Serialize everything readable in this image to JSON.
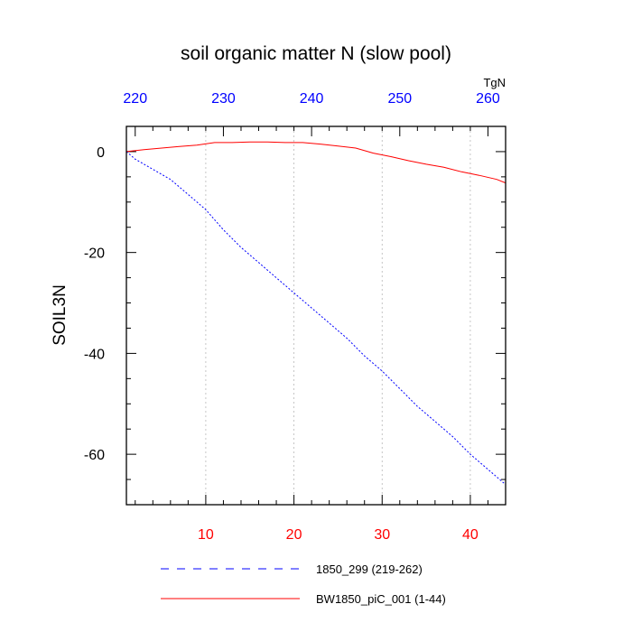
{
  "chart_data": {
    "type": "line",
    "title": "soil organic matter N (slow pool)",
    "ylabel": "SOIL3N",
    "units": "TgN",
    "ylim": [
      -70,
      5
    ],
    "yticks": [
      0,
      -20,
      -40,
      -60
    ],
    "bottom_axis": {
      "range": [
        1,
        44
      ],
      "ticks": [
        10,
        20,
        30,
        40
      ],
      "color": "#ff0000"
    },
    "top_axis": {
      "range": [
        219,
        262
      ],
      "ticks": [
        220,
        230,
        240,
        250,
        260
      ],
      "color": "#0000ff"
    },
    "series": [
      {
        "name": "1850_299 (219-262)",
        "color": "#0000ff",
        "style": "dashed",
        "axis": "top",
        "x": [
          219,
          220,
          222,
          224,
          226,
          228,
          230,
          232,
          234,
          236,
          238,
          240,
          242,
          244,
          246,
          248,
          250,
          252,
          254,
          256,
          258,
          260,
          262
        ],
        "values": [
          0,
          -1.5,
          -3.5,
          -5.5,
          -8.5,
          -11.5,
          -15.5,
          -19,
          -22,
          -25,
          -28,
          -31,
          -34,
          -37,
          -40.5,
          -43.5,
          -47,
          -50.5,
          -53.5,
          -56.5,
          -60,
          -63,
          -66
        ]
      },
      {
        "name": "BW1850_piC_001 (1-44)",
        "color": "#ff0000",
        "style": "solid",
        "axis": "bottom",
        "x": [
          1,
          3,
          5,
          7,
          9,
          11,
          13,
          15,
          17,
          19,
          21,
          23,
          25,
          27,
          29,
          31,
          33,
          35,
          37,
          39,
          41,
          43,
          44
        ],
        "values": [
          0,
          0.4,
          0.7,
          1.0,
          1.3,
          1.8,
          1.8,
          1.9,
          1.9,
          1.8,
          1.8,
          1.5,
          1.1,
          0.7,
          -0.3,
          -1.0,
          -1.8,
          -2.5,
          -3.1,
          -4.0,
          -4.7,
          -5.5,
          -6.2
        ]
      }
    ]
  }
}
